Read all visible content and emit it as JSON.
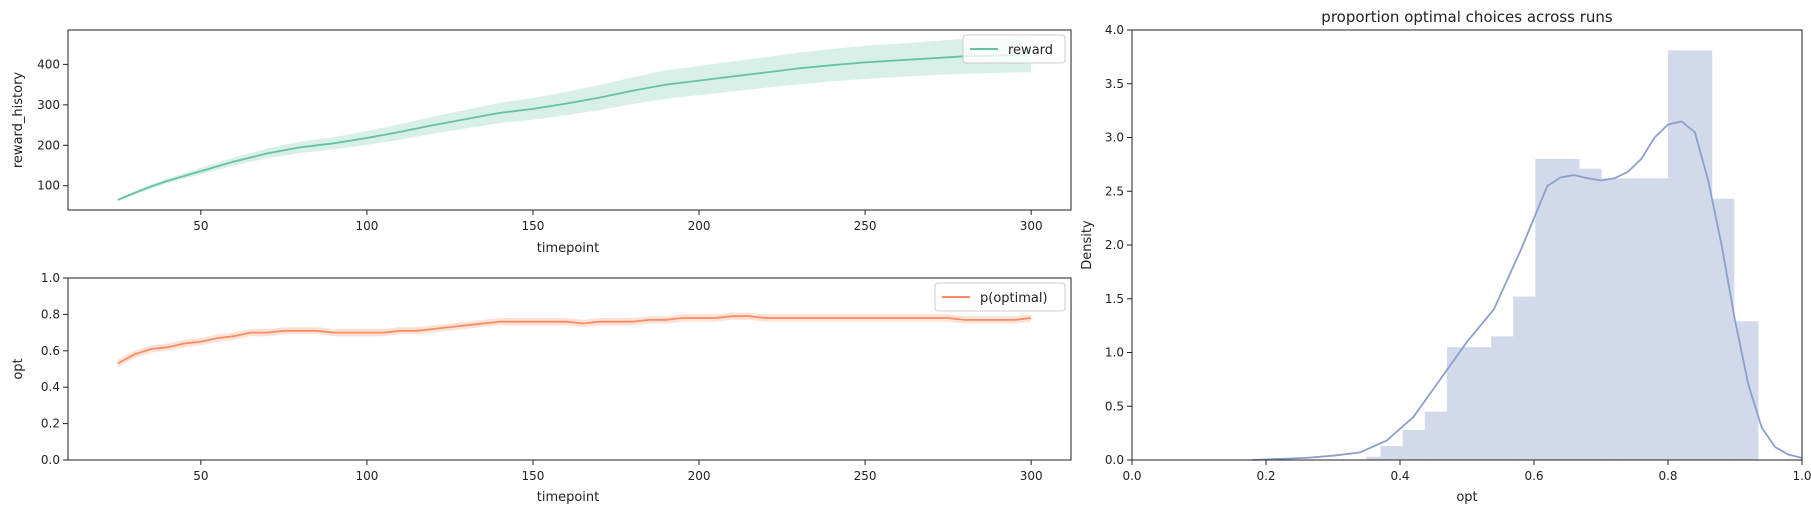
{
  "chart_data": [
    {
      "type": "line",
      "title": "",
      "xlabel": "timepoint",
      "ylabel": "reward_history",
      "xlim": [
        10,
        312
      ],
      "ylim": [
        40,
        485
      ],
      "xticks": [
        50,
        100,
        150,
        200,
        250,
        300
      ],
      "yticks": [
        100,
        200,
        300,
        400
      ],
      "legend": "top-right",
      "series": [
        {
          "name": "reward",
          "color": "#66c2a5",
          "x": [
            25,
            30,
            35,
            40,
            45,
            50,
            55,
            60,
            70,
            80,
            90,
            100,
            110,
            120,
            130,
            140,
            150,
            160,
            170,
            180,
            190,
            200,
            210,
            220,
            230,
            240,
            250,
            260,
            270,
            280,
            290,
            300
          ],
          "y": [
            65,
            82,
            98,
            112,
            124,
            136,
            148,
            160,
            180,
            195,
            205,
            218,
            233,
            250,
            265,
            280,
            290,
            303,
            318,
            335,
            350,
            360,
            370,
            380,
            390,
            398,
            405,
            410,
            415,
            420,
            422,
            425
          ],
          "ci_lower": [
            62,
            78,
            93,
            106,
            117,
            128,
            139,
            150,
            168,
            181,
            190,
            201,
            214,
            229,
            242,
            255,
            263,
            274,
            287,
            302,
            315,
            324,
            333,
            342,
            351,
            358,
            364,
            369,
            373,
            377,
            379,
            381
          ],
          "ci_upper": [
            68,
            86,
            103,
            118,
            131,
            144,
            157,
            170,
            192,
            209,
            220,
            235,
            252,
            271,
            288,
            305,
            317,
            332,
            349,
            368,
            385,
            396,
            407,
            418,
            429,
            438,
            446,
            451,
            457,
            463,
            465,
            469
          ]
        }
      ]
    },
    {
      "type": "line",
      "title": "",
      "xlabel": "timepoint",
      "ylabel": "opt",
      "xlim": [
        10,
        312
      ],
      "ylim": [
        0,
        1.0
      ],
      "xticks": [
        50,
        100,
        150,
        200,
        250,
        300
      ],
      "yticks": [
        0.0,
        0.2,
        0.4,
        0.6,
        0.8,
        1.0
      ],
      "legend": "top-right",
      "series": [
        {
          "name": "p(optimal)",
          "color": "#fc8d62",
          "x": [
            25,
            30,
            35,
            40,
            45,
            50,
            55,
            60,
            65,
            70,
            75,
            80,
            85,
            90,
            95,
            100,
            105,
            110,
            115,
            120,
            125,
            130,
            135,
            140,
            145,
            150,
            155,
            160,
            165,
            170,
            175,
            180,
            185,
            190,
            195,
            200,
            205,
            210,
            215,
            220,
            225,
            230,
            235,
            240,
            245,
            250,
            255,
            260,
            265,
            270,
            275,
            280,
            285,
            290,
            295,
            300
          ],
          "y": [
            0.53,
            0.58,
            0.61,
            0.62,
            0.64,
            0.65,
            0.67,
            0.68,
            0.7,
            0.7,
            0.71,
            0.71,
            0.71,
            0.7,
            0.7,
            0.7,
            0.7,
            0.71,
            0.71,
            0.72,
            0.73,
            0.74,
            0.75,
            0.76,
            0.76,
            0.76,
            0.76,
            0.76,
            0.75,
            0.76,
            0.76,
            0.76,
            0.77,
            0.77,
            0.78,
            0.78,
            0.78,
            0.79,
            0.79,
            0.78,
            0.78,
            0.78,
            0.78,
            0.78,
            0.78,
            0.78,
            0.78,
            0.78,
            0.78,
            0.78,
            0.78,
            0.77,
            0.77,
            0.77,
            0.77,
            0.78
          ],
          "ci_lower": [
            0.51,
            0.56,
            0.59,
            0.6,
            0.62,
            0.63,
            0.65,
            0.66,
            0.68,
            0.68,
            0.69,
            0.69,
            0.69,
            0.68,
            0.68,
            0.68,
            0.68,
            0.69,
            0.69,
            0.7,
            0.71,
            0.72,
            0.73,
            0.74,
            0.74,
            0.74,
            0.74,
            0.74,
            0.73,
            0.74,
            0.74,
            0.74,
            0.75,
            0.75,
            0.76,
            0.76,
            0.76,
            0.77,
            0.77,
            0.76,
            0.76,
            0.76,
            0.76,
            0.76,
            0.76,
            0.76,
            0.76,
            0.76,
            0.76,
            0.76,
            0.76,
            0.75,
            0.75,
            0.75,
            0.75,
            0.76
          ],
          "ci_upper": [
            0.55,
            0.6,
            0.63,
            0.64,
            0.66,
            0.67,
            0.69,
            0.7,
            0.72,
            0.72,
            0.73,
            0.73,
            0.73,
            0.72,
            0.72,
            0.72,
            0.72,
            0.73,
            0.73,
            0.74,
            0.75,
            0.76,
            0.77,
            0.78,
            0.78,
            0.78,
            0.78,
            0.78,
            0.77,
            0.78,
            0.78,
            0.78,
            0.79,
            0.79,
            0.8,
            0.8,
            0.8,
            0.81,
            0.81,
            0.8,
            0.8,
            0.8,
            0.8,
            0.8,
            0.8,
            0.8,
            0.8,
            0.8,
            0.8,
            0.8,
            0.8,
            0.79,
            0.79,
            0.79,
            0.79,
            0.8
          ]
        }
      ]
    },
    {
      "type": "bar",
      "title": "proportion optimal choices across runs",
      "xlabel": "opt",
      "ylabel": "Density",
      "xlim": [
        0,
        1.0
      ],
      "ylim": [
        0,
        4.0
      ],
      "xticks": [
        0.0,
        0.2,
        0.4,
        0.6,
        0.8,
        1.0
      ],
      "yticks": [
        0.0,
        0.5,
        1.0,
        1.5,
        2.0,
        2.5,
        3.0,
        3.5,
        4.0
      ],
      "color": "#8da0cb",
      "bins": [
        {
          "x0": 0.35,
          "x1": 0.371,
          "value": 0.03
        },
        {
          "x0": 0.371,
          "x1": 0.404,
          "value": 0.13
        },
        {
          "x0": 0.404,
          "x1": 0.437,
          "value": 0.28
        },
        {
          "x0": 0.437,
          "x1": 0.47,
          "value": 0.45
        },
        {
          "x0": 0.47,
          "x1": 0.503,
          "value": 1.05
        },
        {
          "x0": 0.503,
          "x1": 0.536,
          "value": 1.05
        },
        {
          "x0": 0.536,
          "x1": 0.569,
          "value": 1.15
        },
        {
          "x0": 0.569,
          "x1": 0.602,
          "value": 1.52
        },
        {
          "x0": 0.602,
          "x1": 0.635,
          "value": 2.8
        },
        {
          "x0": 0.635,
          "x1": 0.668,
          "value": 2.8
        },
        {
          "x0": 0.668,
          "x1": 0.701,
          "value": 2.71
        },
        {
          "x0": 0.701,
          "x1": 0.734,
          "value": 2.62
        },
        {
          "x0": 0.734,
          "x1": 0.767,
          "value": 2.62
        },
        {
          "x0": 0.767,
          "x1": 0.8,
          "value": 2.62
        },
        {
          "x0": 0.8,
          "x1": 0.833,
          "value": 3.81
        },
        {
          "x0": 0.833,
          "x1": 0.866,
          "value": 3.81
        },
        {
          "x0": 0.866,
          "x1": 0.899,
          "value": 2.43
        },
        {
          "x0": 0.899,
          "x1": 0.935,
          "value": 1.29
        }
      ],
      "kde": {
        "x": [
          0.18,
          0.22,
          0.26,
          0.3,
          0.34,
          0.38,
          0.42,
          0.46,
          0.5,
          0.54,
          0.58,
          0.62,
          0.64,
          0.66,
          0.68,
          0.7,
          0.72,
          0.74,
          0.76,
          0.78,
          0.8,
          0.82,
          0.84,
          0.86,
          0.88,
          0.9,
          0.92,
          0.94,
          0.96,
          0.98,
          1.0
        ],
        "y": [
          0.0,
          0.01,
          0.02,
          0.04,
          0.07,
          0.18,
          0.4,
          0.75,
          1.1,
          1.4,
          1.95,
          2.55,
          2.63,
          2.65,
          2.62,
          2.6,
          2.62,
          2.68,
          2.8,
          3.0,
          3.12,
          3.15,
          3.05,
          2.6,
          2.0,
          1.3,
          0.7,
          0.3,
          0.12,
          0.05,
          0.02
        ]
      }
    }
  ]
}
